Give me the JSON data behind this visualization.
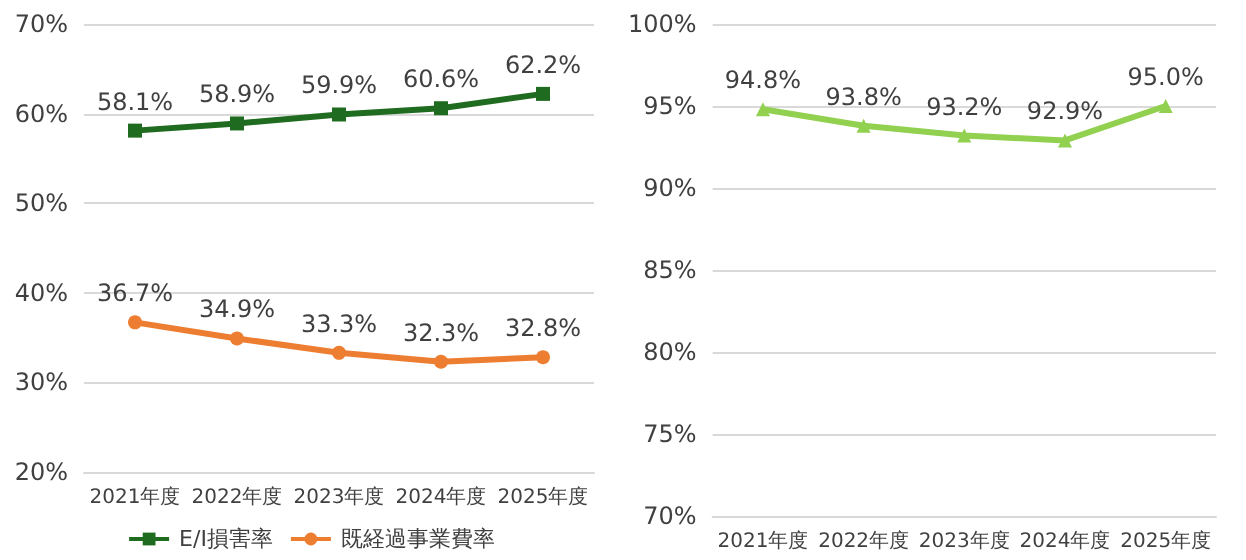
{
  "chart_data": [
    {
      "type": "line",
      "categories": [
        "2021年度",
        "2022年度",
        "2023年度",
        "2024年度",
        "2025年度"
      ],
      "series": [
        {
          "name": "E/I損害率",
          "color": "#1f6b1f",
          "marker": "square",
          "values": [
            58.1,
            58.9,
            59.9,
            60.6,
            62.2
          ],
          "value_labels": [
            "58.1%",
            "58.9%",
            "59.9%",
            "60.6%",
            "62.2%"
          ]
        },
        {
          "name": "既経過事業費率",
          "color": "#ed7d31",
          "marker": "circle",
          "values": [
            36.7,
            34.9,
            33.3,
            32.3,
            32.8
          ],
          "value_labels": [
            "36.7%",
            "34.9%",
            "33.3%",
            "32.3%",
            "32.8%"
          ]
        }
      ],
      "ylim": [
        20,
        70
      ],
      "yticks": [
        {
          "value": 20,
          "label": "20%"
        },
        {
          "value": 30,
          "label": "30%"
        },
        {
          "value": 40,
          "label": "40%"
        },
        {
          "value": 50,
          "label": "50%"
        },
        {
          "value": 60,
          "label": "60%"
        },
        {
          "value": 70,
          "label": "70%"
        }
      ],
      "grid": "y",
      "legend": "bottom"
    },
    {
      "type": "line",
      "categories": [
        "2021年度",
        "2022年度",
        "2023年度",
        "2024年度",
        "2025年度"
      ],
      "series": [
        {
          "color": "#92d050",
          "marker": "triangle",
          "values": [
            94.8,
            93.8,
            93.2,
            92.9,
            95.0
          ],
          "value_labels": [
            "94.8%",
            "93.8%",
            "93.2%",
            "92.9%",
            "95.0%"
          ]
        }
      ],
      "ylim": [
        70,
        100
      ],
      "yticks": [
        {
          "value": 70,
          "label": "70%"
        },
        {
          "value": 75,
          "label": "75%"
        },
        {
          "value": 80,
          "label": "80%"
        },
        {
          "value": 85,
          "label": "85%"
        },
        {
          "value": 90,
          "label": "90%"
        },
        {
          "value": 95,
          "label": "95%"
        },
        {
          "value": 100,
          "label": "100%"
        }
      ],
      "grid": "y"
    }
  ]
}
